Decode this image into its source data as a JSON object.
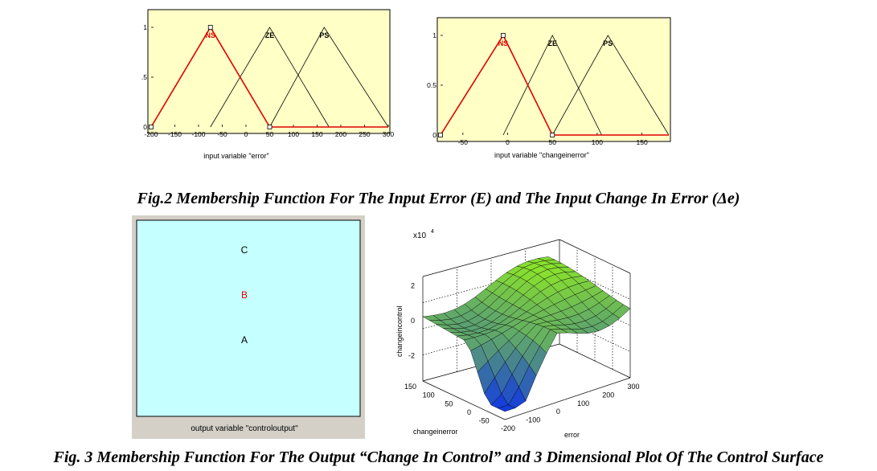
{
  "fig2_caption": "Fig.2 Membership Function For The Input Error (E) and The Input Change In Error (Δe)",
  "fig3_caption": "Fig. 3 Membership Function For The Output “Change In Control” and 3 Dimensional Plot Of The Control Surface",
  "colors": {
    "plot_bg": "#ffffc6",
    "selected": "#e00000",
    "mf_line": "#000000",
    "output_bg": "#c6ffff"
  },
  "chart_data": [
    {
      "type": "line",
      "id": "error-mf",
      "xlabel": "input variable \"error\"",
      "xlim": [
        -200,
        300
      ],
      "ylim": [
        0,
        1
      ],
      "xticks": [
        -200,
        -150,
        -100,
        -50,
        0,
        50,
        100,
        150,
        200,
        250,
        300
      ],
      "yticks": [
        0,
        0.5,
        1
      ],
      "ytick_labels": [
        "0",
        ".5",
        "1"
      ],
      "series": [
        {
          "name": "NS",
          "selected": true,
          "x": [
            -200,
            -75,
            50,
            300
          ],
          "y": [
            0,
            1,
            0,
            0
          ]
        },
        {
          "name": "ZE",
          "selected": false,
          "x": [
            -75,
            50,
            175
          ],
          "y": [
            0,
            1,
            0
          ]
        },
        {
          "name": "PS",
          "selected": false,
          "x": [
            50,
            165,
            300
          ],
          "y": [
            0,
            1,
            0
          ]
        }
      ]
    },
    {
      "type": "line",
      "id": "changeinerror-mf",
      "xlabel": "input variable \"changeinerror\"",
      "xlim": [
        -75,
        180
      ],
      "ylim": [
        0,
        1
      ],
      "xticks": [
        -50,
        0,
        50,
        100,
        150
      ],
      "yticks": [
        0,
        0.5,
        1
      ],
      "ytick_labels": [
        "0",
        "0.5",
        "1"
      ],
      "series": [
        {
          "name": "NS",
          "selected": true,
          "x": [
            -75,
            -5,
            50,
            180
          ],
          "y": [
            0,
            1,
            0,
            0
          ]
        },
        {
          "name": "ZE",
          "selected": false,
          "x": [
            -5,
            50,
            105
          ],
          "y": [
            0,
            1,
            0
          ]
        },
        {
          "name": "PS",
          "selected": false,
          "x": [
            50,
            112,
            180
          ],
          "y": [
            0,
            1,
            0
          ]
        }
      ]
    },
    {
      "type": "table",
      "id": "controloutput-mf",
      "xlabel": "output variable \"controloutput\"",
      "labels": [
        {
          "name": "C",
          "selected": false
        },
        {
          "name": "B",
          "selected": true
        },
        {
          "name": "A",
          "selected": false
        }
      ]
    },
    {
      "type": "surface3d",
      "id": "control-surface",
      "xlabel": "error",
      "ylabel": "changeinerror",
      "zlabel": "changeincontrol",
      "z_multiplier": "x10",
      "z_exponent": "4",
      "xticks": [
        -200,
        -100,
        0,
        100,
        200,
        300
      ],
      "yticks": [
        -50,
        0,
        50,
        100,
        150
      ],
      "zticks": [
        -2,
        0,
        2
      ]
    }
  ]
}
